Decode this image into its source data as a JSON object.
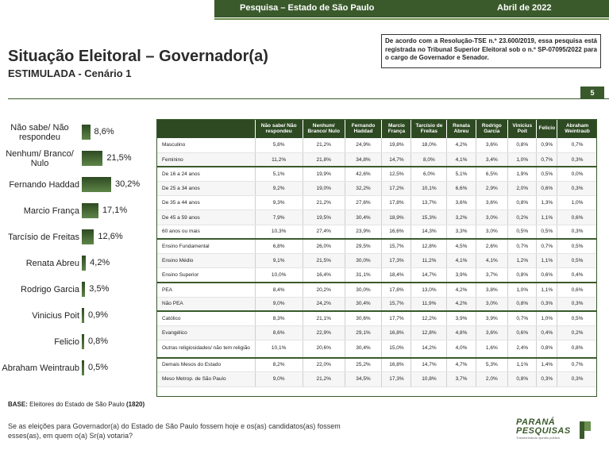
{
  "header": {
    "survey": "Pesquisa – Estado de São Paulo",
    "date": "Abril de 2022"
  },
  "title": "Situação Eleitoral – Governador(a)",
  "subtitle": "ESTIMULADA - Cenário 1",
  "registration": "De acordo com a Resolução-TSE n.º 23.600/2019, essa pesquisa está registrada no Tribunal Superior Eleitoral sob o n.º SP-07095/2022 para o cargo de Governador e Senador.",
  "page_number": "5",
  "chart_data": {
    "type": "bar",
    "orientation": "horizontal",
    "categories": [
      "Não sabe/ Não respondeu",
      "Nenhum/ Branco/ Nulo",
      "Fernando Haddad",
      "Marcio França",
      "Tarcísio de Freitas",
      "Renata Abreu",
      "Rodrigo Garcia",
      "Vinicius Poit",
      "Felicio",
      "Abraham Weintraub"
    ],
    "values": [
      8.6,
      21.5,
      30.2,
      17.1,
      12.6,
      4.2,
      3.5,
      0.9,
      0.8,
      0.5
    ],
    "value_labels": [
      "8,6%",
      "21,5%",
      "30,2%",
      "17,1%",
      "12,6%",
      "4,2%",
      "3,5%",
      "0,9%",
      "0,8%",
      "0,5%"
    ],
    "color": "#3a5a2c"
  },
  "table": {
    "columns": [
      "Não sabe/ Não respondeu",
      "Nenhum/ Branco/ Nulo",
      "Fernando Haddad",
      "Marcio França",
      "Tarcísio de Freitas",
      "Renata Abreu",
      "Rodrigo Garcia",
      "Vinicius Poit",
      "Felicio",
      "Abraham Weintraub"
    ],
    "rows": [
      {
        "label": "Masculino",
        "values": [
          "5,8%",
          "21,2%",
          "24,9%",
          "19,8%",
          "18,0%",
          "4,2%",
          "3,6%",
          "0,8%",
          "0,9%",
          "0,7%"
        ]
      },
      {
        "label": "Feminino",
        "values": [
          "11,2%",
          "21,8%",
          "34,8%",
          "14,7%",
          "8,0%",
          "4,1%",
          "3,4%",
          "1,0%",
          "0,7%",
          "0,3%"
        ]
      },
      {
        "label": "De 16 a 24 anos",
        "values": [
          "5,1%",
          "19,9%",
          "42,6%",
          "12,5%",
          "6,0%",
          "5,1%",
          "6,5%",
          "1,9%",
          "0,5%",
          "0,0%"
        ]
      },
      {
        "label": "De 25 a 34 anos",
        "values": [
          "9,2%",
          "19,0%",
          "32,2%",
          "17,2%",
          "10,1%",
          "6,6%",
          "2,9%",
          "2,0%",
          "0,6%",
          "0,3%"
        ]
      },
      {
        "label": "De 35 a 44 anos",
        "values": [
          "9,3%",
          "21,2%",
          "27,6%",
          "17,8%",
          "13,7%",
          "3,6%",
          "3,6%",
          "0,8%",
          "1,3%",
          "1,0%"
        ]
      },
      {
        "label": "De 45 a 59 anos",
        "values": [
          "7,9%",
          "19,5%",
          "30,4%",
          "18,9%",
          "15,3%",
          "3,2%",
          "3,0%",
          "0,2%",
          "1,1%",
          "0,6%"
        ]
      },
      {
        "label": "60 anos ou mais",
        "values": [
          "10,3%",
          "27,4%",
          "23,9%",
          "16,6%",
          "14,3%",
          "3,3%",
          "3,0%",
          "0,5%",
          "0,5%",
          "0,3%"
        ]
      },
      {
        "label": "Ensino Fundamental",
        "values": [
          "6,8%",
          "26,0%",
          "29,5%",
          "15,7%",
          "12,8%",
          "4,5%",
          "2,6%",
          "0,7%",
          "0,7%",
          "0,5%"
        ]
      },
      {
        "label": "Ensino Médio",
        "values": [
          "9,1%",
          "21,5%",
          "30,0%",
          "17,3%",
          "11,2%",
          "4,1%",
          "4,1%",
          "1,2%",
          "1,1%",
          "0,5%"
        ]
      },
      {
        "label": "Ensino Superior",
        "values": [
          "10,0%",
          "16,4%",
          "31,1%",
          "18,4%",
          "14,7%",
          "3,9%",
          "3,7%",
          "0,8%",
          "0,6%",
          "0,4%"
        ]
      },
      {
        "label": "PEA",
        "values": [
          "8,4%",
          "20,2%",
          "30,0%",
          "17,8%",
          "13,0%",
          "4,2%",
          "3,8%",
          "1,0%",
          "1,1%",
          "0,6%"
        ]
      },
      {
        "label": "Não PEA",
        "values": [
          "9,0%",
          "24,2%",
          "30,4%",
          "15,7%",
          "11,9%",
          "4,2%",
          "3,0%",
          "0,8%",
          "0,3%",
          "0,3%"
        ]
      },
      {
        "label": "Católico",
        "values": [
          "8,3%",
          "21,1%",
          "30,6%",
          "17,7%",
          "12,2%",
          "3,9%",
          "3,9%",
          "0,7%",
          "1,0%",
          "0,5%"
        ]
      },
      {
        "label": "Evangélico",
        "values": [
          "8,6%",
          "22,9%",
          "29,1%",
          "16,8%",
          "12,8%",
          "4,8%",
          "3,6%",
          "0,6%",
          "0,4%",
          "0,2%"
        ]
      },
      {
        "label": "Outras religiosidades/ não tem religião",
        "values": [
          "10,1%",
          "20,6%",
          "30,4%",
          "15,0%",
          "14,2%",
          "4,0%",
          "1,6%",
          "2,4%",
          "0,8%",
          "0,8%"
        ]
      },
      {
        "label": "Demais Mesos do Estado",
        "values": [
          "8,2%",
          "22,0%",
          "25,2%",
          "16,8%",
          "14,7%",
          "4,7%",
          "5,3%",
          "1,1%",
          "1,4%",
          "0,7%"
        ]
      },
      {
        "label": "Meso Metrop. de São Paulo",
        "values": [
          "9,0%",
          "21,2%",
          "34,5%",
          "17,3%",
          "10,8%",
          "3,7%",
          "2,0%",
          "0,8%",
          "0,3%",
          "0,3%"
        ]
      }
    ]
  },
  "base_label": "BASE:",
  "base_text": "Eleitores do Estado de São Paulo",
  "base_n": "(1820)",
  "question": "Se as eleições para Governador(a) do Estado de São Paulo fossem hoje e os(as) candidatos(as) fossem esses(as), em quem o(a) Sr(a) votaria?",
  "logo": {
    "line1": "PARANÁ",
    "line2": "PESQUISAS",
    "tagline": "Transformando opinião pública"
  }
}
